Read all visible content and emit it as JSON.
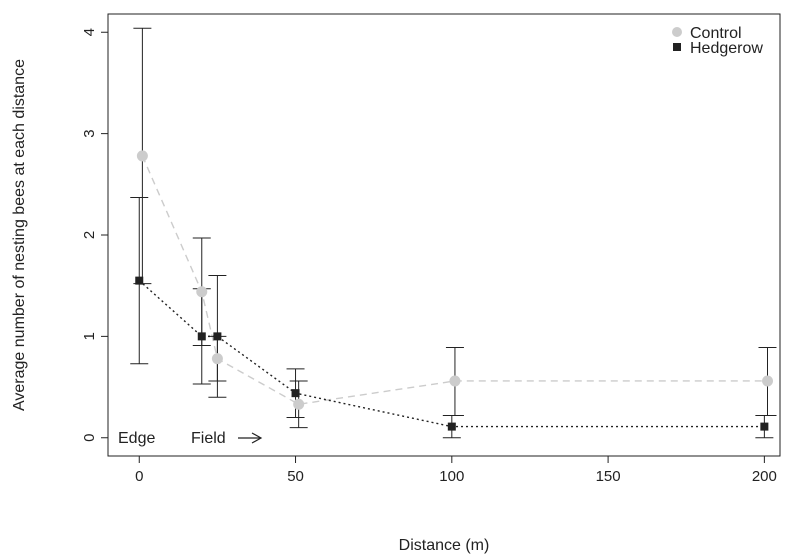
{
  "chart_data": {
    "type": "scatter",
    "xlabel": "Distance (m)",
    "ylabel": "Average number of nesting bees at each distance",
    "xlim": [
      -10,
      205
    ],
    "ylim": [
      -0.18,
      4.18
    ],
    "xticks": [
      0,
      50,
      100,
      150,
      200
    ],
    "yticks": [
      0,
      1,
      2,
      3,
      4
    ],
    "legend_position": "top-right",
    "grid": false,
    "annotations": {
      "edge": "Edge",
      "field": "Field"
    },
    "series": [
      {
        "name": "Control",
        "color": "#cccccc",
        "marker": "circle",
        "line_style": "dashed",
        "points": [
          {
            "x": 1,
            "y": 2.78,
            "lo": 1.52,
            "hi": 4.04
          },
          {
            "x": 20,
            "y": 1.44,
            "lo": 0.91,
            "hi": 1.97
          },
          {
            "x": 25,
            "y": 0.78,
            "lo": 0.56,
            "hi": 1.0
          },
          {
            "x": 51,
            "y": 0.33,
            "lo": 0.1,
            "hi": 0.56
          },
          {
            "x": 101,
            "y": 0.56,
            "lo": 0.22,
            "hi": 0.89
          },
          {
            "x": 201,
            "y": 0.56,
            "lo": 0.22,
            "hi": 0.89
          }
        ]
      },
      {
        "name": "Hedgerow",
        "color": "#222222",
        "marker": "square",
        "line_style": "dotted",
        "points": [
          {
            "x": 0,
            "y": 1.55,
            "lo": 0.73,
            "hi": 2.37
          },
          {
            "x": 20,
            "y": 1.0,
            "lo": 0.53,
            "hi": 1.47
          },
          {
            "x": 25,
            "y": 1.0,
            "lo": 0.4,
            "hi": 1.6
          },
          {
            "x": 50,
            "y": 0.44,
            "lo": 0.2,
            "hi": 0.68
          },
          {
            "x": 100,
            "y": 0.11,
            "lo": 0.0,
            "hi": 0.22
          },
          {
            "x": 200,
            "y": 0.11,
            "lo": 0.0,
            "hi": 0.22
          }
        ]
      }
    ]
  }
}
